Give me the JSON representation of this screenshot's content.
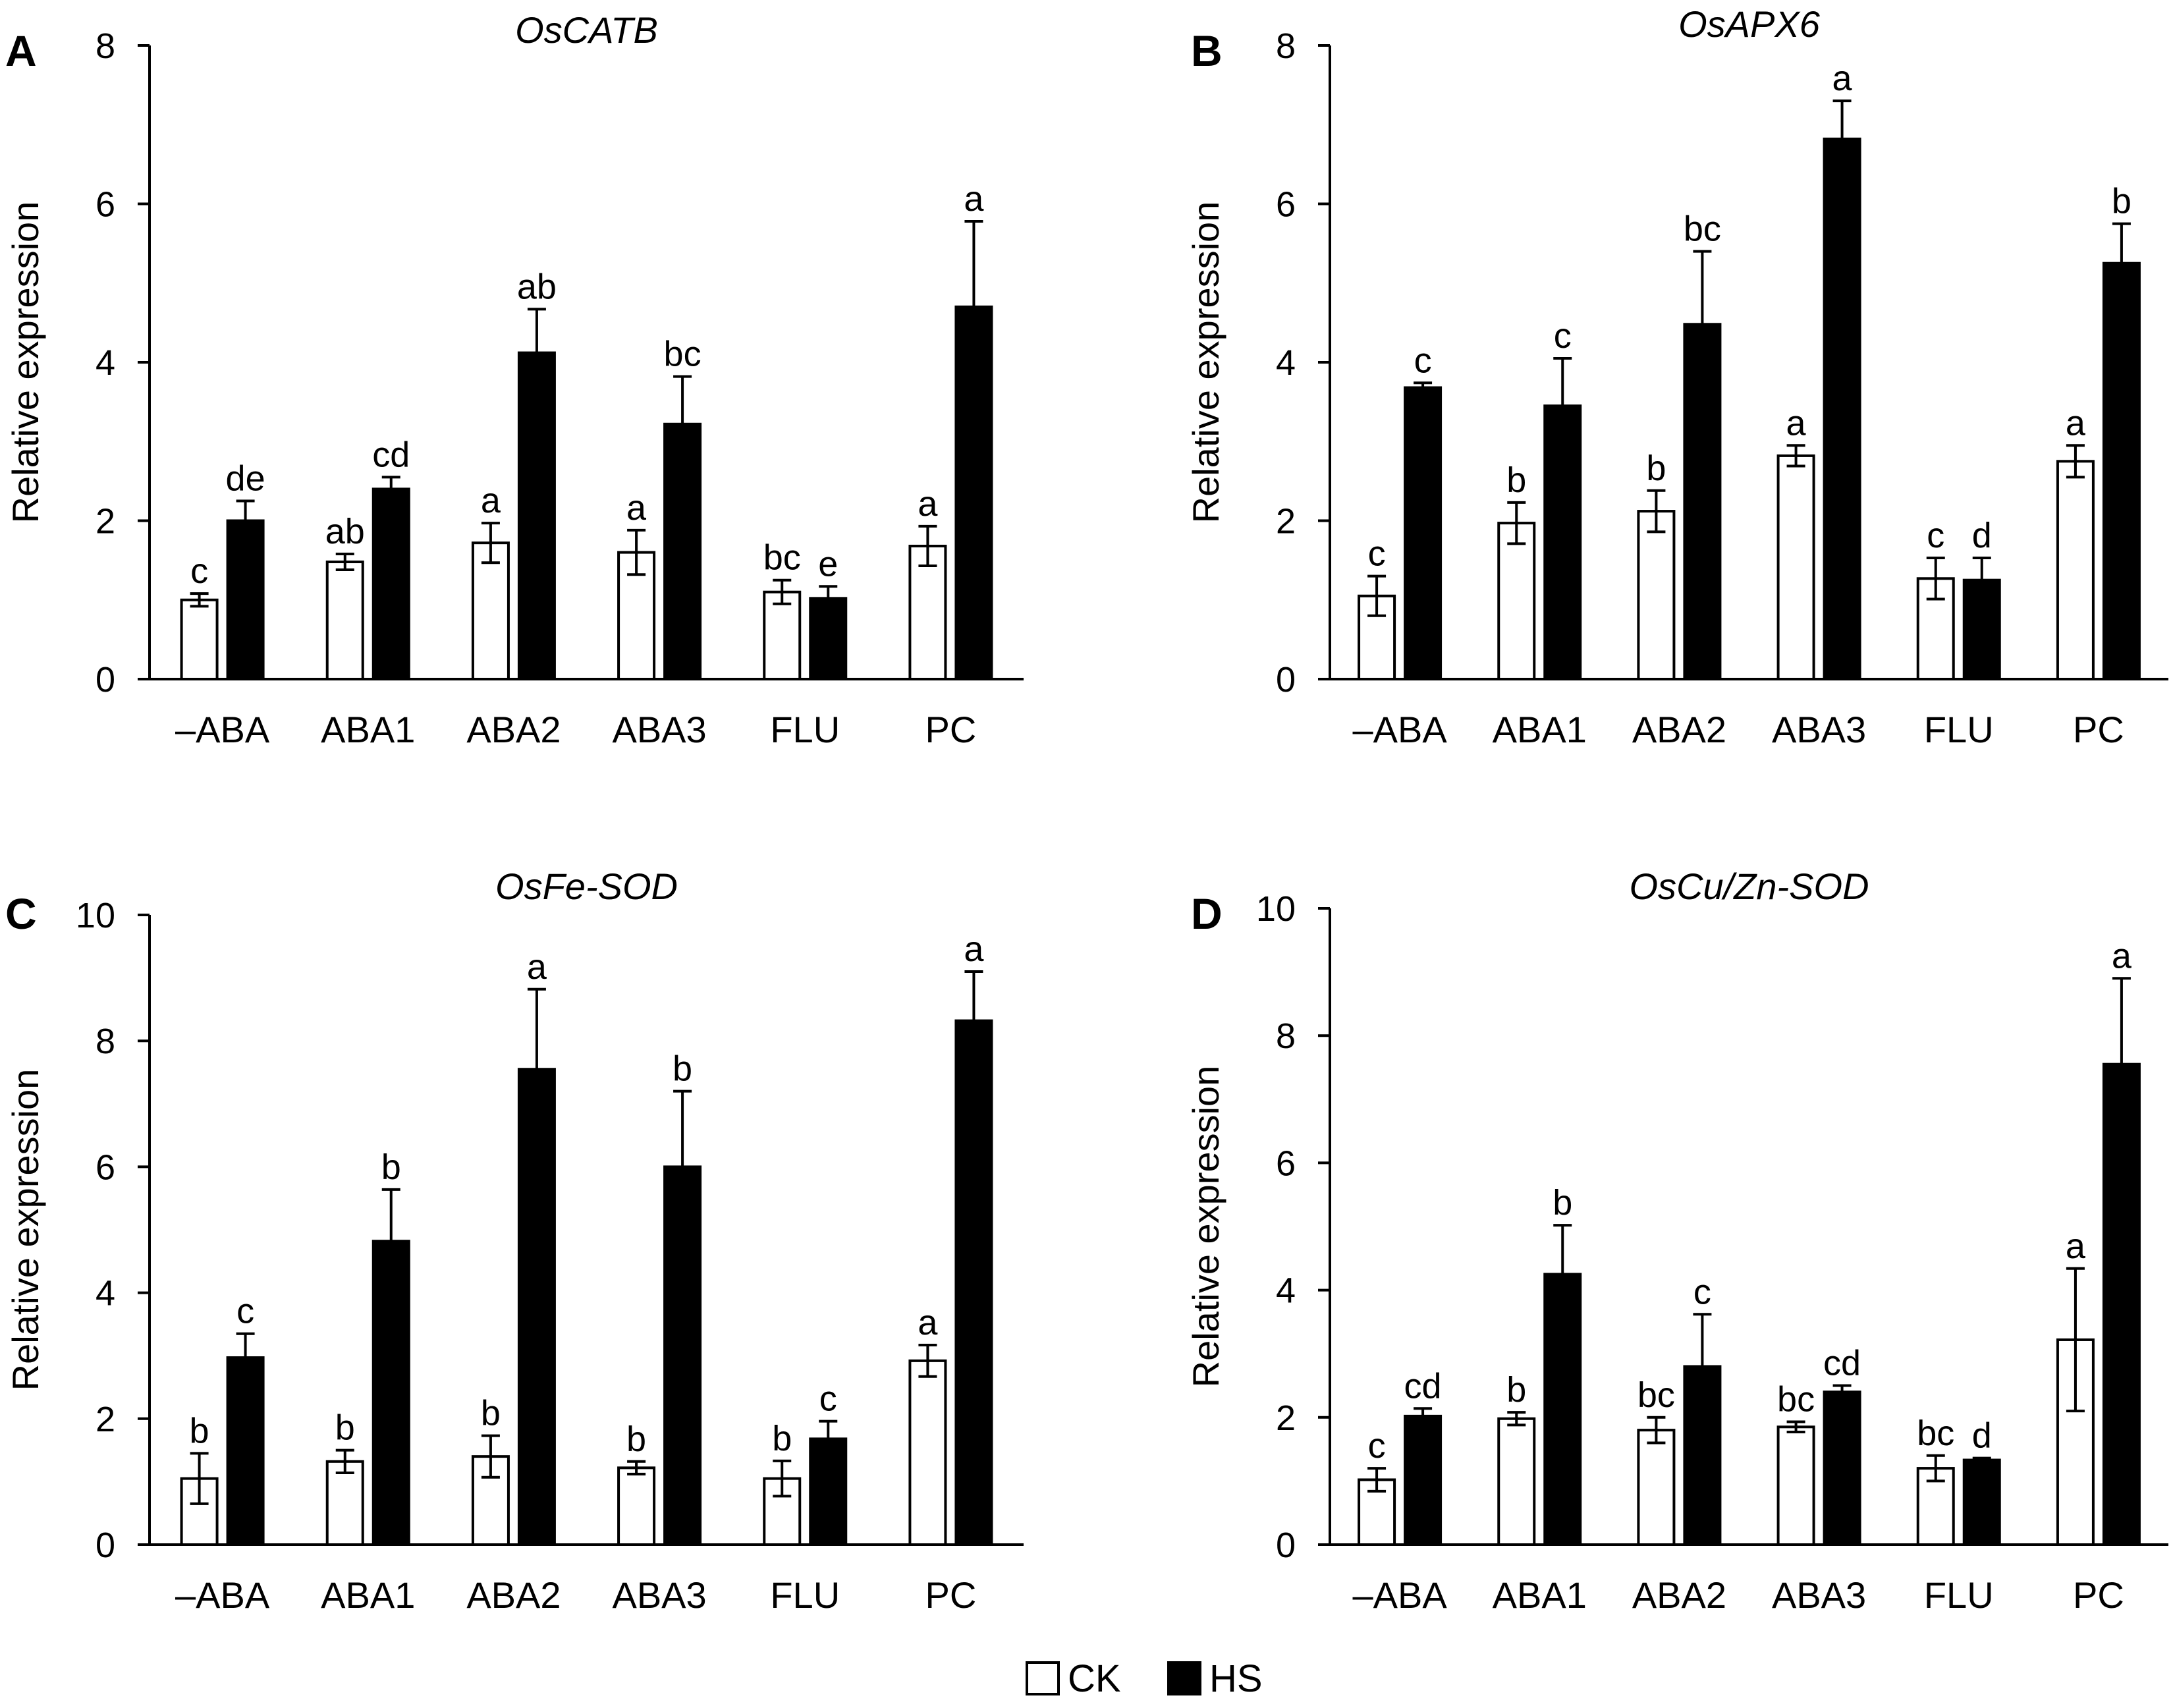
{
  "colors": {
    "CK": "#ffffff",
    "HS": "#000000",
    "axis": "#000000"
  },
  "legend": {
    "items": [
      {
        "label": "CK",
        "color": "#ffffff"
      },
      {
        "label": "HS",
        "color": "#000000"
      }
    ],
    "position": "bottom-center"
  },
  "chart_data": [
    {
      "type": "bar",
      "panel": "A",
      "title": "OsCATB",
      "ylabel": "Relative expression",
      "xlabel": "",
      "ylim": [
        0,
        8
      ],
      "yticks": [
        0,
        2,
        4,
        6,
        8
      ],
      "categories": [
        "–ABA",
        "ABA1",
        "ABA2",
        "ABA3",
        "FLU",
        "PC"
      ],
      "series": [
        {
          "name": "CK",
          "values": [
            1.0,
            1.48,
            1.72,
            1.6,
            1.1,
            1.68
          ],
          "errors": [
            0.08,
            0.1,
            0.25,
            0.28,
            0.15,
            0.25
          ],
          "letters": [
            "c",
            "ab",
            "a",
            "a",
            "bc",
            "a"
          ]
        },
        {
          "name": "HS",
          "values": [
            2.0,
            2.4,
            4.12,
            3.22,
            1.02,
            4.7
          ],
          "errors": [
            0.25,
            0.15,
            0.55,
            0.6,
            0.15,
            1.08
          ],
          "letters": [
            "de",
            "cd",
            "ab",
            "bc",
            "e",
            "a"
          ]
        }
      ]
    },
    {
      "type": "bar",
      "panel": "B",
      "title": "OsAPX6",
      "ylabel": "Relative expression",
      "xlabel": "",
      "ylim": [
        0,
        8
      ],
      "yticks": [
        0,
        2,
        4,
        6,
        8
      ],
      "categories": [
        "–ABA",
        "ABA1",
        "ABA2",
        "ABA3",
        "FLU",
        "PC"
      ],
      "series": [
        {
          "name": "CK",
          "values": [
            1.05,
            1.97,
            2.12,
            2.82,
            1.27,
            2.75
          ],
          "errors": [
            0.25,
            0.26,
            0.26,
            0.13,
            0.26,
            0.2
          ],
          "letters": [
            "c",
            "b",
            "b",
            "a",
            "c",
            "a"
          ]
        },
        {
          "name": "HS",
          "values": [
            3.68,
            3.45,
            4.48,
            6.82,
            1.25,
            5.25
          ],
          "errors": [
            0.06,
            0.6,
            0.92,
            0.48,
            0.28,
            0.5
          ],
          "letters": [
            "c",
            "c",
            "bc",
            "a",
            "d",
            "b"
          ]
        }
      ]
    },
    {
      "type": "bar",
      "panel": "C",
      "title": "OsFe-SOD",
      "ylabel": "Relative expression",
      "xlabel": "",
      "ylim": [
        0,
        10
      ],
      "yticks": [
        0,
        2,
        4,
        6,
        8,
        10
      ],
      "categories": [
        "–ABA",
        "ABA1",
        "ABA2",
        "ABA3",
        "FLU",
        "PC"
      ],
      "series": [
        {
          "name": "CK",
          "values": [
            1.05,
            1.32,
            1.4,
            1.22,
            1.05,
            2.92
          ],
          "errors": [
            0.4,
            0.18,
            0.33,
            0.1,
            0.28,
            0.25
          ],
          "letters": [
            "b",
            "b",
            "b",
            "b",
            "b",
            "a"
          ]
        },
        {
          "name": "HS",
          "values": [
            2.97,
            4.82,
            7.55,
            6.0,
            1.68,
            8.32
          ],
          "errors": [
            0.38,
            0.82,
            1.27,
            1.2,
            0.28,
            0.78
          ],
          "letters": [
            "c",
            "b",
            "a",
            "b",
            "c",
            "a"
          ]
        }
      ]
    },
    {
      "type": "bar",
      "panel": "D",
      "title": "OsCu/Zn-SOD",
      "ylabel": "Relative expression",
      "xlabel": "",
      "ylim": [
        0,
        10
      ],
      "yticks": [
        0,
        2,
        4,
        6,
        8,
        10
      ],
      "categories": [
        "–ABA",
        "ABA1",
        "ABA2",
        "ABA3",
        "FLU",
        "PC"
      ],
      "series": [
        {
          "name": "CK",
          "values": [
            1.02,
            1.98,
            1.8,
            1.85,
            1.2,
            3.22
          ],
          "errors": [
            0.18,
            0.1,
            0.2,
            0.08,
            0.2,
            1.12
          ],
          "letters": [
            "c",
            "b",
            "bc",
            "bc",
            "bc",
            "a"
          ]
        },
        {
          "name": "HS",
          "values": [
            2.02,
            4.25,
            2.8,
            2.4,
            1.33,
            7.55
          ],
          "errors": [
            0.12,
            0.77,
            0.82,
            0.1,
            0.03,
            1.35
          ],
          "letters": [
            "cd",
            "b",
            "c",
            "cd",
            "d",
            "a"
          ]
        }
      ]
    }
  ]
}
